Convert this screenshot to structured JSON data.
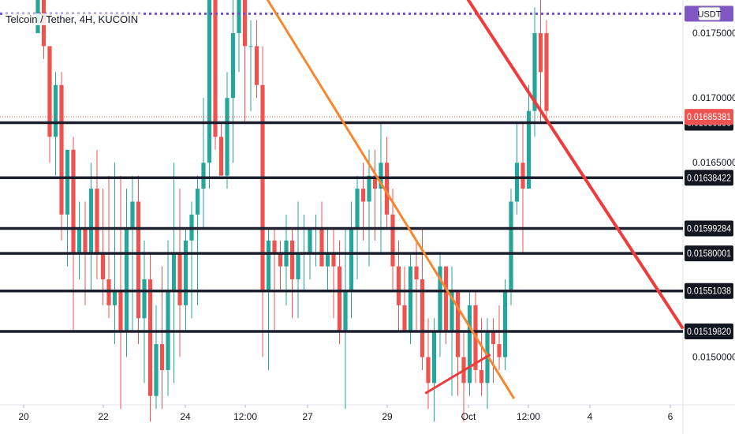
{
  "legend": {
    "symbol": "Telcoin / Tether, 4H, KUCOIN"
  },
  "price_axis": {
    "currency_badge": "USDT"
  },
  "colors": {
    "up": "#26a69a",
    "down": "#ef5350",
    "level_line": "#1c1f2e",
    "dotted": "#6e4fd6",
    "orange": "#f7862e",
    "red_line": "#ef3b3b",
    "price_label_bg": "#131722",
    "current_label_bg": "#ef5350",
    "badge_bg": "#7e57c2"
  },
  "chart_data": {
    "type": "candlestick",
    "x_ticks": [
      "20",
      "22",
      "24",
      "12:00",
      "27",
      "29",
      "Oct",
      "12:00",
      "4",
      "6"
    ],
    "y_ticks": [
      "0.01750000",
      "0.01700000",
      "0.01650000",
      "0.01500000"
    ],
    "ylim": [
      0.01465,
      0.01775
    ],
    "current_price": "0.01685381",
    "purple_dotted_level": 0.01765,
    "horizontal_levels": [
      {
        "price": 0.0168089,
        "label": "0.01680890"
      },
      {
        "price": 0.01638422,
        "label": "0.01638422"
      },
      {
        "price": 0.01599284,
        "label": "0.01599284"
      },
      {
        "price": 0.01580001,
        "label": "0.01580001"
      },
      {
        "price": 0.01551038,
        "label": "0.01551038"
      },
      {
        "price": 0.0151982,
        "label": "0.01519820"
      }
    ],
    "candles": [
      [
        0.0175,
        0.0182,
        0.0175,
        0.0181
      ],
      [
        0.0181,
        0.0182,
        0.0173,
        0.0174
      ],
      [
        0.0174,
        0.0174,
        0.0165,
        0.0167
      ],
      [
        0.0167,
        0.0172,
        0.0164,
        0.0171
      ],
      [
        0.0171,
        0.0172,
        0.0159,
        0.0161
      ],
      [
        0.0161,
        0.0166,
        0.0157,
        0.0166
      ],
      [
        0.0166,
        0.0167,
        0.0152,
        0.0158
      ],
      [
        0.0158,
        0.0162,
        0.0156,
        0.016
      ],
      [
        0.016,
        0.0162,
        0.0154,
        0.0158
      ],
      [
        0.0158,
        0.0165,
        0.0155,
        0.0163
      ],
      [
        0.0163,
        0.0166,
        0.0156,
        0.0158
      ],
      [
        0.0158,
        0.0163,
        0.0154,
        0.0156
      ],
      [
        0.0156,
        0.0164,
        0.0153,
        0.0154
      ],
      [
        0.0154,
        0.0165,
        0.0151,
        0.0155
      ],
      [
        0.0155,
        0.0164,
        0.0146,
        0.0152
      ],
      [
        0.0152,
        0.0163,
        0.015,
        0.016
      ],
      [
        0.016,
        0.0164,
        0.0152,
        0.0162
      ],
      [
        0.0162,
        0.0164,
        0.0151,
        0.0153
      ],
      [
        0.0153,
        0.0159,
        0.0148,
        0.0156
      ],
      [
        0.0156,
        0.0158,
        0.0145,
        0.0147
      ],
      [
        0.0147,
        0.0154,
        0.0146,
        0.0151
      ],
      [
        0.0151,
        0.0157,
        0.0146,
        0.0149
      ],
      [
        0.0149,
        0.0159,
        0.0147,
        0.0155
      ],
      [
        0.0155,
        0.0165,
        0.0148,
        0.0158
      ],
      [
        0.0158,
        0.0163,
        0.015,
        0.0154
      ],
      [
        0.0154,
        0.016,
        0.0152,
        0.0159
      ],
      [
        0.0159,
        0.0162,
        0.0153,
        0.0161
      ],
      [
        0.0161,
        0.0164,
        0.0154,
        0.0163
      ],
      [
        0.0163,
        0.017,
        0.016,
        0.0165
      ],
      [
        0.0165,
        0.0181,
        0.0163,
        0.0178
      ],
      [
        0.0178,
        0.018,
        0.0166,
        0.0167
      ],
      [
        0.0167,
        0.0168,
        0.0164,
        0.0164
      ],
      [
        0.0164,
        0.0172,
        0.0163,
        0.017
      ],
      [
        0.017,
        0.0178,
        0.0165,
        0.0175
      ],
      [
        0.0175,
        0.018,
        0.0172,
        0.0178
      ],
      [
        0.0178,
        0.018,
        0.0168,
        0.0174
      ],
      [
        0.0174,
        0.0176,
        0.0169,
        0.0174
      ],
      [
        0.0174,
        0.0176,
        0.017,
        0.0171
      ],
      [
        0.0171,
        0.0174,
        0.015,
        0.0155
      ],
      [
        0.0155,
        0.016,
        0.0149,
        0.0159
      ],
      [
        0.0159,
        0.016,
        0.0152,
        0.0158
      ],
      [
        0.0158,
        0.0159,
        0.0155,
        0.0157
      ],
      [
        0.0157,
        0.0161,
        0.0154,
        0.0159
      ],
      [
        0.0159,
        0.016,
        0.0153,
        0.0156
      ],
      [
        0.0156,
        0.0162,
        0.0153,
        0.0158
      ],
      [
        0.0158,
        0.0161,
        0.0155,
        0.0158
      ],
      [
        0.0158,
        0.016,
        0.0156,
        0.016
      ],
      [
        0.016,
        0.0161,
        0.0157,
        0.016
      ],
      [
        0.016,
        0.0162,
        0.0157,
        0.0157
      ],
      [
        0.0157,
        0.016,
        0.0155,
        0.0158
      ],
      [
        0.0158,
        0.016,
        0.0153,
        0.0157
      ],
      [
        0.0157,
        0.0159,
        0.0151,
        0.0152
      ],
      [
        0.0152,
        0.016,
        0.0146,
        0.0155
      ],
      [
        0.0155,
        0.0162,
        0.0153,
        0.016
      ],
      [
        0.016,
        0.0164,
        0.0156,
        0.0163
      ],
      [
        0.0163,
        0.0165,
        0.0159,
        0.0162
      ],
      [
        0.0162,
        0.0166,
        0.0157,
        0.0164
      ],
      [
        0.0164,
        0.0166,
        0.0159,
        0.0163
      ],
      [
        0.0163,
        0.0168,
        0.0158,
        0.0165
      ],
      [
        0.0165,
        0.0167,
        0.016,
        0.0161
      ],
      [
        0.0161,
        0.0163,
        0.0155,
        0.0157
      ],
      [
        0.0157,
        0.0159,
        0.0152,
        0.0154
      ],
      [
        0.0154,
        0.0157,
        0.0152,
        0.0152
      ],
      [
        0.0152,
        0.0158,
        0.0151,
        0.0157
      ],
      [
        0.0157,
        0.0159,
        0.0152,
        0.0156
      ],
      [
        0.0156,
        0.016,
        0.0149,
        0.015
      ],
      [
        0.015,
        0.0153,
        0.0146,
        0.0148
      ],
      [
        0.0148,
        0.0153,
        0.0145,
        0.0152
      ],
      [
        0.0152,
        0.0158,
        0.015,
        0.0157
      ],
      [
        0.0157,
        0.0157,
        0.0151,
        0.0152
      ],
      [
        0.0152,
        0.0157,
        0.0147,
        0.0155
      ],
      [
        0.0155,
        0.0155,
        0.0147,
        0.015
      ],
      [
        0.015,
        0.0152,
        0.0145,
        0.0148
      ],
      [
        0.0148,
        0.0155,
        0.0147,
        0.0154
      ],
      [
        0.0154,
        0.0155,
        0.0148,
        0.0149
      ],
      [
        0.0149,
        0.0153,
        0.0147,
        0.0148
      ],
      [
        0.0148,
        0.0153,
        0.0146,
        0.0152
      ],
      [
        0.0152,
        0.0153,
        0.0148,
        0.0151
      ],
      [
        0.0151,
        0.0154,
        0.0149,
        0.015
      ],
      [
        0.015,
        0.0156,
        0.0149,
        0.0155
      ],
      [
        0.0155,
        0.0163,
        0.0154,
        0.0162
      ],
      [
        0.0162,
        0.0168,
        0.0161,
        0.0165
      ],
      [
        0.0165,
        0.0168,
        0.0158,
        0.0163
      ],
      [
        0.0163,
        0.0171,
        0.0163,
        0.0169
      ],
      [
        0.0169,
        0.0177,
        0.0167,
        0.0175
      ],
      [
        0.0175,
        0.018,
        0.0168,
        0.0172
      ],
      [
        0.0175,
        0.0176,
        0.0168,
        0.0169
      ]
    ]
  }
}
